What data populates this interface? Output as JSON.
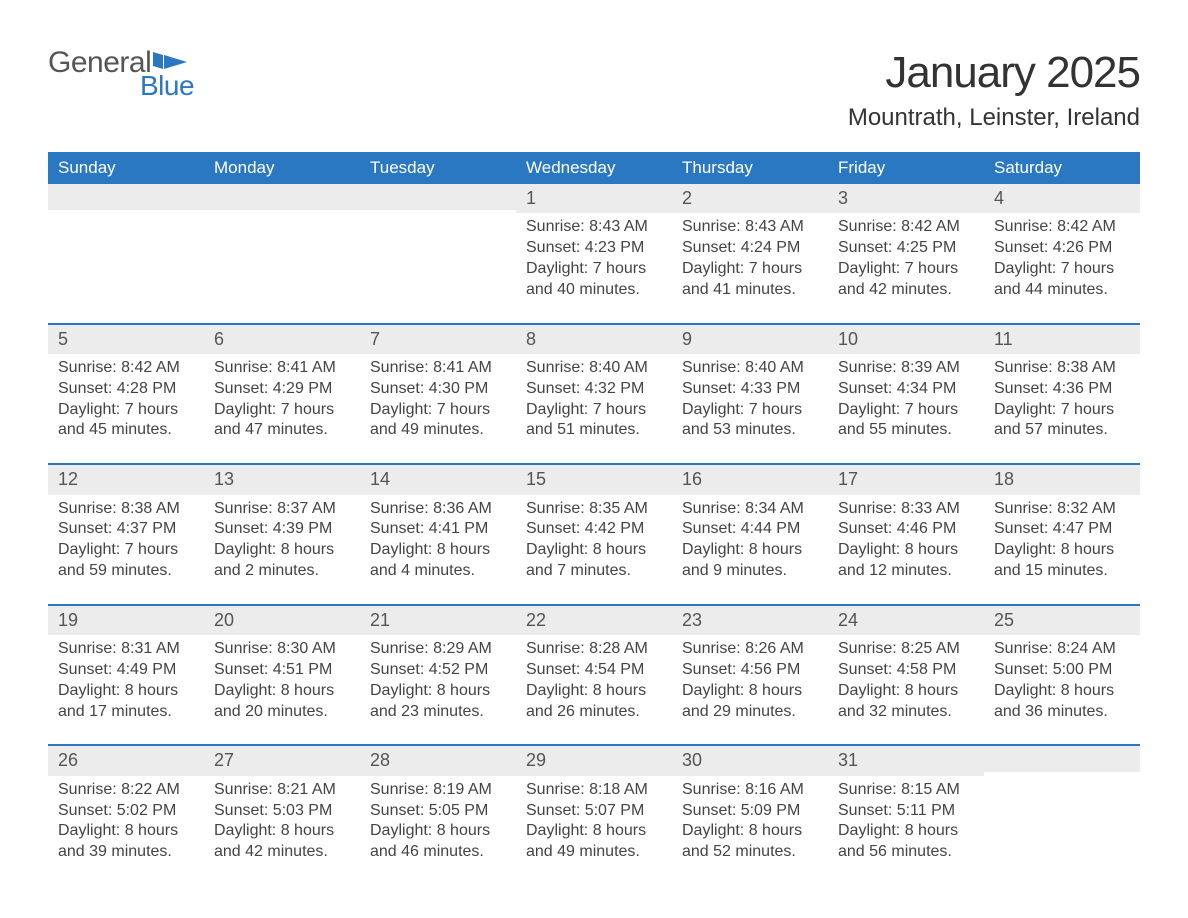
{
  "logo": {
    "word1": "General",
    "word2": "Blue",
    "flag_color": "#2b78c2"
  },
  "title": "January 2025",
  "location": "Mountrath, Leinster, Ireland",
  "header_bg": "#2b78c2",
  "header_fg": "#ffffff",
  "daynum_bg": "#ececec",
  "row_border": "#2b78c2",
  "text_color": "#444444",
  "weekdays": [
    "Sunday",
    "Monday",
    "Tuesday",
    "Wednesday",
    "Thursday",
    "Friday",
    "Saturday"
  ],
  "weeks": [
    [
      {
        "day": "",
        "sunrise": "",
        "sunset": "",
        "daylight": ""
      },
      {
        "day": "",
        "sunrise": "",
        "sunset": "",
        "daylight": ""
      },
      {
        "day": "",
        "sunrise": "",
        "sunset": "",
        "daylight": ""
      },
      {
        "day": "1",
        "sunrise": "Sunrise: 8:43 AM",
        "sunset": "Sunset: 4:23 PM",
        "daylight": "Daylight: 7 hours and 40 minutes."
      },
      {
        "day": "2",
        "sunrise": "Sunrise: 8:43 AM",
        "sunset": "Sunset: 4:24 PM",
        "daylight": "Daylight: 7 hours and 41 minutes."
      },
      {
        "day": "3",
        "sunrise": "Sunrise: 8:42 AM",
        "sunset": "Sunset: 4:25 PM",
        "daylight": "Daylight: 7 hours and 42 minutes."
      },
      {
        "day": "4",
        "sunrise": "Sunrise: 8:42 AM",
        "sunset": "Sunset: 4:26 PM",
        "daylight": "Daylight: 7 hours and 44 minutes."
      }
    ],
    [
      {
        "day": "5",
        "sunrise": "Sunrise: 8:42 AM",
        "sunset": "Sunset: 4:28 PM",
        "daylight": "Daylight: 7 hours and 45 minutes."
      },
      {
        "day": "6",
        "sunrise": "Sunrise: 8:41 AM",
        "sunset": "Sunset: 4:29 PM",
        "daylight": "Daylight: 7 hours and 47 minutes."
      },
      {
        "day": "7",
        "sunrise": "Sunrise: 8:41 AM",
        "sunset": "Sunset: 4:30 PM",
        "daylight": "Daylight: 7 hours and 49 minutes."
      },
      {
        "day": "8",
        "sunrise": "Sunrise: 8:40 AM",
        "sunset": "Sunset: 4:32 PM",
        "daylight": "Daylight: 7 hours and 51 minutes."
      },
      {
        "day": "9",
        "sunrise": "Sunrise: 8:40 AM",
        "sunset": "Sunset: 4:33 PM",
        "daylight": "Daylight: 7 hours and 53 minutes."
      },
      {
        "day": "10",
        "sunrise": "Sunrise: 8:39 AM",
        "sunset": "Sunset: 4:34 PM",
        "daylight": "Daylight: 7 hours and 55 minutes."
      },
      {
        "day": "11",
        "sunrise": "Sunrise: 8:38 AM",
        "sunset": "Sunset: 4:36 PM",
        "daylight": "Daylight: 7 hours and 57 minutes."
      }
    ],
    [
      {
        "day": "12",
        "sunrise": "Sunrise: 8:38 AM",
        "sunset": "Sunset: 4:37 PM",
        "daylight": "Daylight: 7 hours and 59 minutes."
      },
      {
        "day": "13",
        "sunrise": "Sunrise: 8:37 AM",
        "sunset": "Sunset: 4:39 PM",
        "daylight": "Daylight: 8 hours and 2 minutes."
      },
      {
        "day": "14",
        "sunrise": "Sunrise: 8:36 AM",
        "sunset": "Sunset: 4:41 PM",
        "daylight": "Daylight: 8 hours and 4 minutes."
      },
      {
        "day": "15",
        "sunrise": "Sunrise: 8:35 AM",
        "sunset": "Sunset: 4:42 PM",
        "daylight": "Daylight: 8 hours and 7 minutes."
      },
      {
        "day": "16",
        "sunrise": "Sunrise: 8:34 AM",
        "sunset": "Sunset: 4:44 PM",
        "daylight": "Daylight: 8 hours and 9 minutes."
      },
      {
        "day": "17",
        "sunrise": "Sunrise: 8:33 AM",
        "sunset": "Sunset: 4:46 PM",
        "daylight": "Daylight: 8 hours and 12 minutes."
      },
      {
        "day": "18",
        "sunrise": "Sunrise: 8:32 AM",
        "sunset": "Sunset: 4:47 PM",
        "daylight": "Daylight: 8 hours and 15 minutes."
      }
    ],
    [
      {
        "day": "19",
        "sunrise": "Sunrise: 8:31 AM",
        "sunset": "Sunset: 4:49 PM",
        "daylight": "Daylight: 8 hours and 17 minutes."
      },
      {
        "day": "20",
        "sunrise": "Sunrise: 8:30 AM",
        "sunset": "Sunset: 4:51 PM",
        "daylight": "Daylight: 8 hours and 20 minutes."
      },
      {
        "day": "21",
        "sunrise": "Sunrise: 8:29 AM",
        "sunset": "Sunset: 4:52 PM",
        "daylight": "Daylight: 8 hours and 23 minutes."
      },
      {
        "day": "22",
        "sunrise": "Sunrise: 8:28 AM",
        "sunset": "Sunset: 4:54 PM",
        "daylight": "Daylight: 8 hours and 26 minutes."
      },
      {
        "day": "23",
        "sunrise": "Sunrise: 8:26 AM",
        "sunset": "Sunset: 4:56 PM",
        "daylight": "Daylight: 8 hours and 29 minutes."
      },
      {
        "day": "24",
        "sunrise": "Sunrise: 8:25 AM",
        "sunset": "Sunset: 4:58 PM",
        "daylight": "Daylight: 8 hours and 32 minutes."
      },
      {
        "day": "25",
        "sunrise": "Sunrise: 8:24 AM",
        "sunset": "Sunset: 5:00 PM",
        "daylight": "Daylight: 8 hours and 36 minutes."
      }
    ],
    [
      {
        "day": "26",
        "sunrise": "Sunrise: 8:22 AM",
        "sunset": "Sunset: 5:02 PM",
        "daylight": "Daylight: 8 hours and 39 minutes."
      },
      {
        "day": "27",
        "sunrise": "Sunrise: 8:21 AM",
        "sunset": "Sunset: 5:03 PM",
        "daylight": "Daylight: 8 hours and 42 minutes."
      },
      {
        "day": "28",
        "sunrise": "Sunrise: 8:19 AM",
        "sunset": "Sunset: 5:05 PM",
        "daylight": "Daylight: 8 hours and 46 minutes."
      },
      {
        "day": "29",
        "sunrise": "Sunrise: 8:18 AM",
        "sunset": "Sunset: 5:07 PM",
        "daylight": "Daylight: 8 hours and 49 minutes."
      },
      {
        "day": "30",
        "sunrise": "Sunrise: 8:16 AM",
        "sunset": "Sunset: 5:09 PM",
        "daylight": "Daylight: 8 hours and 52 minutes."
      },
      {
        "day": "31",
        "sunrise": "Sunrise: 8:15 AM",
        "sunset": "Sunset: 5:11 PM",
        "daylight": "Daylight: 8 hours and 56 minutes."
      },
      {
        "day": "",
        "sunrise": "",
        "sunset": "",
        "daylight": ""
      }
    ]
  ]
}
